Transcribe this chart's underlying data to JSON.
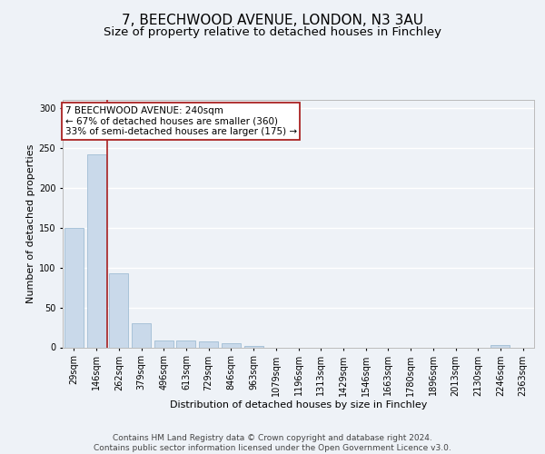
{
  "title_line1": "7, BEECHWOOD AVENUE, LONDON, N3 3AU",
  "title_line2": "Size of property relative to detached houses in Finchley",
  "xlabel": "Distribution of detached houses by size in Finchley",
  "ylabel": "Number of detached properties",
  "categories": [
    "29sqm",
    "146sqm",
    "262sqm",
    "379sqm",
    "496sqm",
    "613sqm",
    "729sqm",
    "846sqm",
    "963sqm",
    "1079sqm",
    "1196sqm",
    "1313sqm",
    "1429sqm",
    "1546sqm",
    "1663sqm",
    "1780sqm",
    "1896sqm",
    "2013sqm",
    "2130sqm",
    "2246sqm",
    "2363sqm"
  ],
  "values": [
    150,
    242,
    93,
    30,
    8,
    8,
    7,
    5,
    2,
    0,
    0,
    0,
    0,
    0,
    0,
    0,
    0,
    0,
    0,
    3,
    0
  ],
  "bar_color": "#c9d9ea",
  "bar_edge_color": "#a0bdd4",
  "vline_x_idx": 1,
  "vline_color": "#aa2222",
  "annotation_text": "7 BEECHWOOD AVENUE: 240sqm\n← 67% of detached houses are smaller (360)\n33% of semi-detached houses are larger (175) →",
  "annotation_box_color": "white",
  "annotation_box_edge_color": "#aa2222",
  "ylim": [
    0,
    310
  ],
  "yticks": [
    0,
    50,
    100,
    150,
    200,
    250,
    300
  ],
  "background_color": "#eef2f7",
  "plot_bg_color": "#eef2f7",
  "grid_color": "white",
  "footer_text": "Contains HM Land Registry data © Crown copyright and database right 2024.\nContains public sector information licensed under the Open Government Licence v3.0.",
  "title_fontsize": 11,
  "subtitle_fontsize": 9.5,
  "label_fontsize": 8,
  "tick_fontsize": 7,
  "annotation_fontsize": 7.5,
  "footer_fontsize": 6.5
}
